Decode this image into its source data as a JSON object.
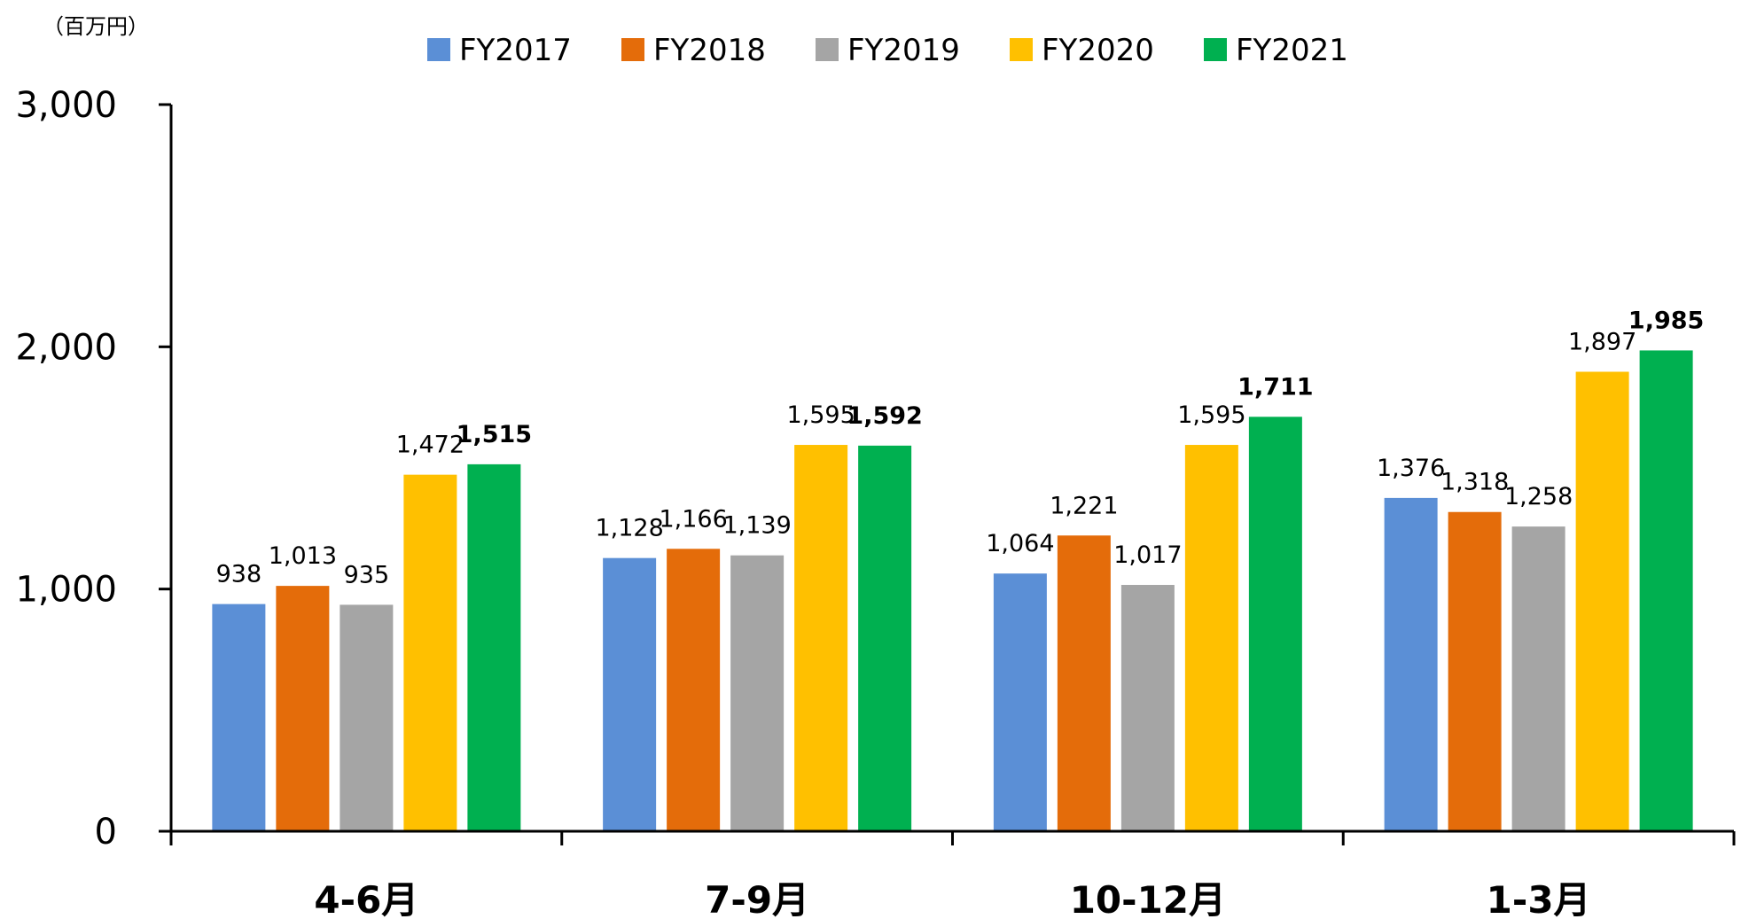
{
  "chart_data": {
    "type": "bar",
    "unit_label": "（百万円）",
    "categories": [
      "4-6月",
      "7-9月",
      "10-12月",
      "1-3月"
    ],
    "ylim": [
      0,
      3000
    ],
    "yticks": [
      0,
      1000,
      2000,
      3000
    ],
    "ytick_labels": [
      "0",
      "1,000",
      "2,000",
      "3,000"
    ],
    "legend_position": "top-center",
    "grid": false,
    "series": [
      {
        "name": "FY2017",
        "color": "#5B8FD6",
        "values": [
          938,
          1128,
          1064,
          1376
        ],
        "labels": [
          "938",
          "1,128",
          "1,064",
          "1,376"
        ],
        "label_bold": false
      },
      {
        "name": "FY2018",
        "color": "#E46C0A",
        "values": [
          1013,
          1166,
          1221,
          1318
        ],
        "labels": [
          "1,013",
          "1,166",
          "1,221",
          "1,318"
        ],
        "label_bold": false
      },
      {
        "name": "FY2019",
        "color": "#A5A5A5",
        "values": [
          935,
          1139,
          1017,
          1258
        ],
        "labels": [
          "935",
          "1,139",
          "1,017",
          "1,258"
        ],
        "label_bold": false
      },
      {
        "name": "FY2020",
        "color": "#FFC000",
        "values": [
          1472,
          1595,
          1595,
          1897
        ],
        "labels": [
          "1,472",
          "1,595",
          "1,595",
          "1,897"
        ],
        "label_bold": false
      },
      {
        "name": "FY2021",
        "color": "#00B050",
        "values": [
          1515,
          1592,
          1711,
          1985
        ],
        "labels": [
          "1,515",
          "1,592",
          "1,711",
          "1,985"
        ],
        "label_bold": true
      }
    ]
  }
}
